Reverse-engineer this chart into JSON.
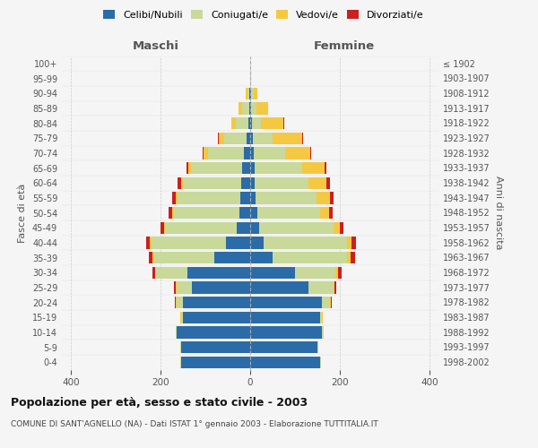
{
  "age_groups": [
    "0-4",
    "5-9",
    "10-14",
    "15-19",
    "20-24",
    "25-29",
    "30-34",
    "35-39",
    "40-44",
    "45-49",
    "50-54",
    "55-59",
    "60-64",
    "65-69",
    "70-74",
    "75-79",
    "80-84",
    "85-89",
    "90-94",
    "95-99",
    "100+"
  ],
  "birth_years": [
    "1998-2002",
    "1993-1997",
    "1988-1992",
    "1983-1987",
    "1978-1982",
    "1973-1977",
    "1968-1972",
    "1963-1967",
    "1958-1962",
    "1953-1957",
    "1948-1952",
    "1943-1947",
    "1938-1942",
    "1933-1937",
    "1928-1932",
    "1923-1927",
    "1918-1922",
    "1913-1917",
    "1908-1912",
    "1903-1907",
    "≤ 1902"
  ],
  "male": {
    "celibi": [
      155,
      155,
      165,
      150,
      150,
      130,
      140,
      80,
      55,
      30,
      25,
      22,
      20,
      18,
      15,
      8,
      5,
      3,
      2,
      0,
      0
    ],
    "coniugati": [
      1,
      1,
      2,
      5,
      15,
      35,
      70,
      135,
      165,
      160,
      145,
      140,
      130,
      115,
      80,
      50,
      28,
      15,
      5,
      1,
      0
    ],
    "vedovi": [
      0,
      0,
      0,
      1,
      2,
      2,
      3,
      4,
      5,
      3,
      5,
      5,
      5,
      5,
      10,
      12,
      10,
      8,
      3,
      0,
      0
    ],
    "divorziati": [
      0,
      0,
      0,
      1,
      1,
      3,
      5,
      8,
      8,
      8,
      8,
      8,
      8,
      5,
      2,
      2,
      0,
      0,
      0,
      0,
      0
    ]
  },
  "female": {
    "nubili": [
      155,
      150,
      160,
      155,
      160,
      130,
      100,
      50,
      30,
      20,
      15,
      12,
      10,
      10,
      8,
      5,
      4,
      2,
      2,
      0,
      0
    ],
    "coniugate": [
      2,
      2,
      3,
      5,
      18,
      55,
      90,
      165,
      185,
      165,
      140,
      135,
      120,
      105,
      70,
      45,
      20,
      12,
      5,
      1,
      0
    ],
    "vedove": [
      0,
      0,
      0,
      1,
      2,
      3,
      5,
      8,
      10,
      15,
      20,
      30,
      40,
      50,
      55,
      65,
      50,
      25,
      8,
      1,
      0
    ],
    "divorziate": [
      0,
      0,
      0,
      1,
      2,
      3,
      8,
      10,
      10,
      8,
      8,
      8,
      8,
      5,
      3,
      2,
      1,
      0,
      0,
      0,
      0
    ]
  },
  "colors": {
    "celibi": "#2B6CA8",
    "coniugati": "#C8D99A",
    "vedovi": "#F5C842",
    "divorziati": "#CC1F1F"
  },
  "xlim": 420,
  "title": "Popolazione per età, sesso e stato civile - 2003",
  "subtitle": "COMUNE DI SANT'AGNELLO (NA) - Dati ISTAT 1° gennaio 2003 - Elaborazione TUTTITALIA.IT",
  "ylabel_left": "Fasce di età",
  "ylabel_right": "Anni di nascita",
  "xlabel_left": "Maschi",
  "xlabel_right": "Femmine",
  "background_color": "#f5f5f5",
  "grid_color": "#cccccc"
}
